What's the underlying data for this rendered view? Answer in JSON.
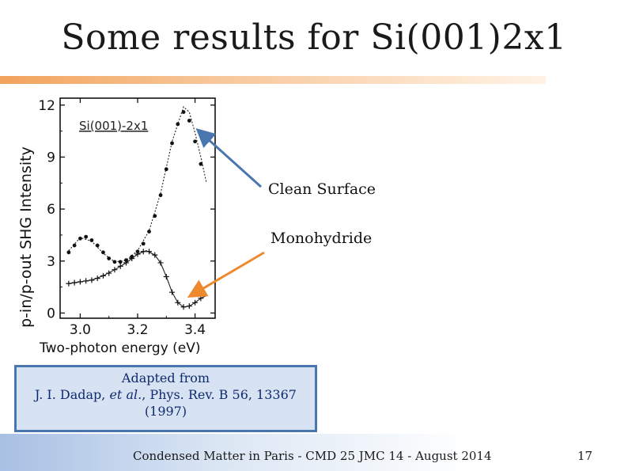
{
  "slide": {
    "title": "Some results for Si(001)2x1",
    "callout_clean": "Clean Surface",
    "callout_mono": "Monohydride",
    "caption_line1": "Adapted from",
    "caption_authors": "J. I. Dadap, ",
    "caption_etal": "et al.",
    "caption_ref": ", Phys. Rev. B 56, 13367",
    "caption_year": "(1997)",
    "footer": "Condensed Matter in Paris - CMD 25 JMC 14 -  August 2014",
    "page_number": "17",
    "colors": {
      "title_bar": "#f2a35c",
      "caption_border": "#4a76b0",
      "arrow_clean": "#4a76b0",
      "arrow_mono": "#ee8a2e"
    }
  },
  "chart_data": {
    "type": "scatter",
    "inset_label": "Si(001)-2x1",
    "xlabel": "Two-photon energy (eV)",
    "ylabel": "p-in/p-out SHG Intensity",
    "xlim": [
      2.93,
      3.47
    ],
    "ylim": [
      -0.3,
      12.4
    ],
    "xticks": [
      3.0,
      3.2,
      3.4
    ],
    "xtick_labels": [
      "3.0",
      "3.2",
      "3.4"
    ],
    "yticks": [
      0,
      3,
      6,
      9,
      12
    ],
    "ytick_labels": [
      "0",
      "3",
      "6",
      "9",
      "12"
    ],
    "series": [
      {
        "marker": "dot",
        "points": [
          [
            2.96,
            3.5
          ],
          [
            2.98,
            3.9
          ],
          [
            3.0,
            4.3
          ],
          [
            3.02,
            4.4
          ],
          [
            3.04,
            4.2
          ],
          [
            3.06,
            3.9
          ],
          [
            3.08,
            3.5
          ],
          [
            3.1,
            3.15
          ],
          [
            3.12,
            2.95
          ],
          [
            3.14,
            2.95
          ],
          [
            3.16,
            3.05
          ],
          [
            3.18,
            3.25
          ],
          [
            3.2,
            3.55
          ],
          [
            3.22,
            4.0
          ],
          [
            3.24,
            4.7
          ],
          [
            3.26,
            5.6
          ],
          [
            3.28,
            6.8
          ],
          [
            3.3,
            8.3
          ],
          [
            3.32,
            9.8
          ],
          [
            3.34,
            10.9
          ],
          [
            3.36,
            11.6
          ],
          [
            3.38,
            11.1
          ],
          [
            3.4,
            9.9
          ],
          [
            3.42,
            8.6
          ]
        ],
        "fit": [
          [
            2.96,
            3.6
          ],
          [
            3.0,
            4.35
          ],
          [
            3.04,
            4.15
          ],
          [
            3.08,
            3.45
          ],
          [
            3.12,
            2.95
          ],
          [
            3.16,
            3.05
          ],
          [
            3.2,
            3.6
          ],
          [
            3.24,
            4.75
          ],
          [
            3.28,
            6.9
          ],
          [
            3.32,
            9.9
          ],
          [
            3.36,
            11.9
          ],
          [
            3.38,
            11.6
          ],
          [
            3.4,
            10.4
          ],
          [
            3.42,
            9.0
          ],
          [
            3.44,
            7.5
          ]
        ]
      },
      {
        "marker": "cross",
        "points": [
          [
            2.96,
            1.7
          ],
          [
            2.98,
            1.75
          ],
          [
            3.0,
            1.8
          ],
          [
            3.02,
            1.85
          ],
          [
            3.04,
            1.9
          ],
          [
            3.06,
            2.0
          ],
          [
            3.08,
            2.15
          ],
          [
            3.1,
            2.3
          ],
          [
            3.12,
            2.5
          ],
          [
            3.14,
            2.7
          ],
          [
            3.16,
            2.9
          ],
          [
            3.18,
            3.15
          ],
          [
            3.2,
            3.4
          ],
          [
            3.22,
            3.55
          ],
          [
            3.24,
            3.55
          ],
          [
            3.26,
            3.35
          ],
          [
            3.28,
            2.9
          ],
          [
            3.3,
            2.1
          ],
          [
            3.32,
            1.2
          ],
          [
            3.34,
            0.6
          ],
          [
            3.36,
            0.35
          ],
          [
            3.38,
            0.4
          ],
          [
            3.4,
            0.6
          ],
          [
            3.42,
            0.85
          ]
        ],
        "fit": [
          [
            2.96,
            1.7
          ],
          [
            3.0,
            1.8
          ],
          [
            3.04,
            1.9
          ],
          [
            3.08,
            2.15
          ],
          [
            3.12,
            2.5
          ],
          [
            3.16,
            2.9
          ],
          [
            3.2,
            3.4
          ],
          [
            3.23,
            3.6
          ],
          [
            3.26,
            3.35
          ],
          [
            3.28,
            2.9
          ],
          [
            3.3,
            2.1
          ],
          [
            3.32,
            1.2
          ],
          [
            3.34,
            0.6
          ],
          [
            3.36,
            0.35
          ],
          [
            3.38,
            0.4
          ],
          [
            3.4,
            0.6
          ],
          [
            3.42,
            0.85
          ],
          [
            3.44,
            1.0
          ]
        ]
      }
    ]
  }
}
